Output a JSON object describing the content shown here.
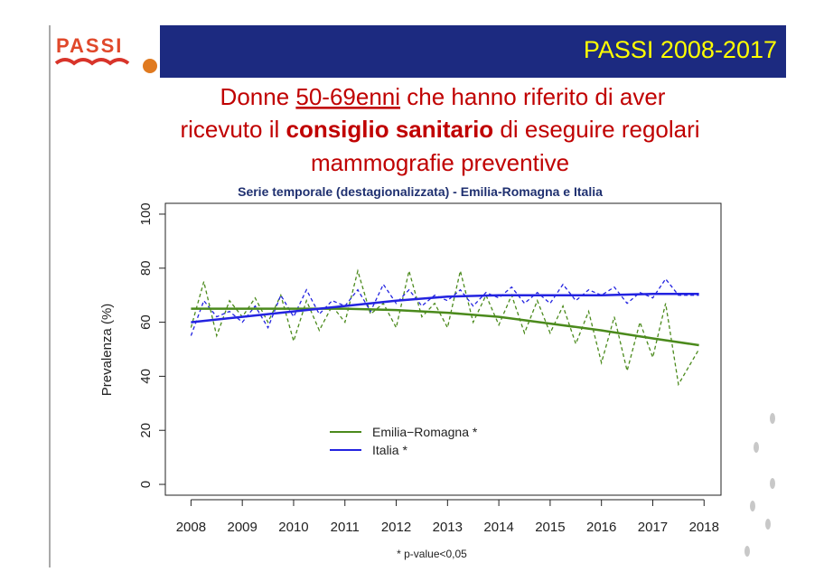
{
  "slide": {
    "logo": "PASSI",
    "header": "PASSI 2008-2017",
    "title_lines": [
      [
        "Donne ",
        "50-69enni",
        " che hanno riferito di aver"
      ],
      [
        "ricevuto il ",
        "consiglio sanitario",
        " di eseguire regolari"
      ],
      [
        "mammografie preventive"
      ]
    ],
    "footnote": "* p-value<0,05"
  },
  "chart_data": {
    "type": "line",
    "title": "Serie temporale (destagionalizzata) - Emilia-Romagna e Italia",
    "y_label": "Prevalenza (%)",
    "xlim": [
      2007.5,
      2018.33
    ],
    "ylim": [
      -4,
      104
    ],
    "xticks": [
      2008,
      2009,
      2010,
      2011,
      2012,
      2013,
      2014,
      2015,
      2016,
      2017,
      2018
    ],
    "yticks": [
      0,
      20,
      40,
      60,
      80,
      100
    ],
    "series": [
      {
        "name": "Emilia−Romagna *",
        "color": "#4b8a1c",
        "style": "dashed",
        "x": [
          2008,
          2008.25,
          2008.5,
          2008.75,
          2009,
          2009.25,
          2009.5,
          2009.75,
          2010,
          2010.25,
          2010.5,
          2010.75,
          2011,
          2011.25,
          2011.5,
          2011.75,
          2012,
          2012.25,
          2012.5,
          2012.75,
          2013,
          2013.25,
          2013.5,
          2013.75,
          2014,
          2014.25,
          2014.5,
          2014.75,
          2015,
          2015.25,
          2015.5,
          2015.75,
          2016,
          2016.25,
          2016.5,
          2016.75,
          2017,
          2017.25,
          2017.5,
          2017.9
        ],
        "values": [
          58,
          75,
          55,
          68,
          62,
          69,
          60,
          70,
          53,
          68,
          57,
          66,
          60,
          79,
          63,
          67,
          58,
          79,
          62,
          67,
          58,
          79,
          60,
          70,
          59,
          70,
          56,
          68,
          56,
          66,
          52,
          64,
          45,
          62,
          42,
          60,
          47,
          67,
          37,
          50
        ]
      },
      {
        "name": "Italia *",
        "color": "#2323e0",
        "style": "dashed",
        "x": [
          2008,
          2008.25,
          2008.5,
          2008.75,
          2009,
          2009.25,
          2009.5,
          2009.75,
          2010,
          2010.25,
          2010.5,
          2010.75,
          2011,
          2011.25,
          2011.5,
          2011.75,
          2012,
          2012.25,
          2012.5,
          2012.75,
          2013,
          2013.25,
          2013.5,
          2013.75,
          2014,
          2014.25,
          2014.5,
          2014.75,
          2015,
          2015.25,
          2015.5,
          2015.75,
          2016,
          2016.25,
          2016.5,
          2016.75,
          2017,
          2017.25,
          2017.5,
          2017.9
        ],
        "values": [
          55,
          68,
          62,
          64,
          60,
          66,
          58,
          70,
          62,
          72,
          63,
          68,
          66,
          72,
          64,
          74,
          67,
          72,
          66,
          70,
          68,
          72,
          66,
          71,
          69,
          73,
          67,
          71,
          67,
          74,
          68,
          72,
          70,
          73,
          67,
          71,
          69,
          76,
          70,
          70
        ]
      },
      {
        "name": "Emilia−Romagna *",
        "color": "#4b8a1c",
        "style": "trend",
        "legend": true,
        "x": [
          2008,
          2009,
          2010,
          2011,
          2012,
          2013,
          2014,
          2015,
          2016,
          2017,
          2017.9
        ],
        "values": [
          65,
          65,
          65,
          65,
          64.5,
          63.5,
          62,
          59.5,
          57,
          54,
          51.5
        ]
      },
      {
        "name": "Italia *",
        "color": "#2323e0",
        "style": "trend",
        "legend": true,
        "x": [
          2008,
          2009,
          2010,
          2011,
          2012,
          2013,
          2014,
          2015,
          2016,
          2017,
          2017.9
        ],
        "values": [
          60,
          62,
          64,
          66,
          68,
          69.5,
          70,
          70,
          70,
          70.5,
          70.5
        ]
      }
    ]
  }
}
